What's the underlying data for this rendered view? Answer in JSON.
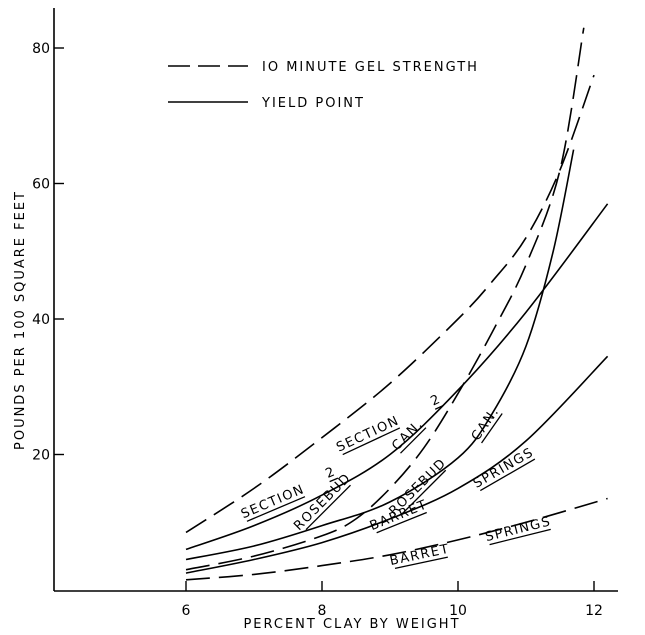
{
  "chart_data": {
    "type": "line",
    "title": "",
    "xlabel": "PERCENT CLAY BY WEIGHT",
    "ylabel": "POUNDS PER 100 SQUARE FEET",
    "xlim": [
      4,
      12.7
    ],
    "ylim": [
      0,
      86
    ],
    "xticks": [
      6,
      8,
      10,
      12
    ],
    "yticks": [
      20,
      40,
      60,
      80
    ],
    "grid": false,
    "legend": {
      "placement": "top-left",
      "entries": [
        {
          "label": "IO MINUTE GEL STRENGTH",
          "style": "dashed"
        },
        {
          "label": "YIELD POINT",
          "style": "solid"
        }
      ]
    },
    "series": [
      {
        "name": "SECTION 2",
        "style": "dashed",
        "x": [
          6,
          7,
          8,
          9,
          10,
          10.5,
          11,
          11.5,
          12
        ],
        "y": [
          8.5,
          15,
          22.5,
          30.5,
          40,
          45.5,
          52,
          62,
          76
        ]
      },
      {
        "name": "ROSEBUD CAN.",
        "style": "dashed",
        "x": [
          6,
          7,
          8,
          8.5,
          9,
          9.5,
          10,
          10.5,
          11,
          11.5,
          11.85
        ],
        "y": [
          3,
          5,
          8,
          10.5,
          15,
          21,
          29,
          38,
          48,
          62,
          83
        ]
      },
      {
        "name": "BARRET SPRINGS",
        "style": "dashed",
        "x": [
          6,
          7,
          8,
          9,
          10,
          11,
          12.2
        ],
        "y": [
          1.5,
          2.3,
          3.6,
          5.2,
          7.4,
          10,
          13.5
        ]
      },
      {
        "name": "SECTION 2",
        "style": "solid",
        "x": [
          6,
          7,
          8,
          9,
          10,
          11,
          12.2
        ],
        "y": [
          6,
          9.5,
          14,
          20,
          29.5,
          41,
          57
        ]
      },
      {
        "name": "ROSEBUD CAN.",
        "style": "solid",
        "x": [
          6,
          7,
          8,
          9,
          10,
          10.5,
          11,
          11.4,
          11.7
        ],
        "y": [
          4.5,
          6.5,
          9.5,
          13,
          19.5,
          26,
          36,
          50,
          65
        ]
      },
      {
        "name": "BARRET SPRINGS",
        "style": "solid",
        "x": [
          6,
          7,
          8,
          9,
          10,
          11,
          12.2
        ],
        "y": [
          2.5,
          4.5,
          7,
          10.5,
          15,
          22,
          34.5
        ]
      }
    ],
    "curve_labels": [
      {
        "text": "SECTION",
        "x": 8.7,
        "y": 22.5,
        "angle": -25
      },
      {
        "text": "2",
        "x": 9.7,
        "y": 27.5,
        "angle": -25
      },
      {
        "text": "SECTION",
        "x": 7.3,
        "y": 12.5,
        "angle": -23
      },
      {
        "text": "2",
        "x": 8.15,
        "y": 16.8,
        "angle": -23
      },
      {
        "text": "ROSEBUD",
        "x": 8.05,
        "y": 12.6,
        "angle": -45
      },
      {
        "text": "CAN.",
        "x": 9.3,
        "y": 22.5,
        "angle": -45
      },
      {
        "text": "ROSEBUD",
        "x": 9.45,
        "y": 14.8,
        "angle": -45
      },
      {
        "text": "CAN.",
        "x": 10.45,
        "y": 24.2,
        "angle": -55
      },
      {
        "text": "BARRET",
        "x": 9.15,
        "y": 10.5,
        "angle": -22
      },
      {
        "text": "SPRINGS",
        "x": 10.7,
        "y": 17.5,
        "angle": -30
      },
      {
        "text": "BARRET",
        "x": 9.45,
        "y": 4.6,
        "angle": -12
      },
      {
        "text": "SPRINGS",
        "x": 10.9,
        "y": 8.4,
        "angle": -14
      }
    ]
  }
}
